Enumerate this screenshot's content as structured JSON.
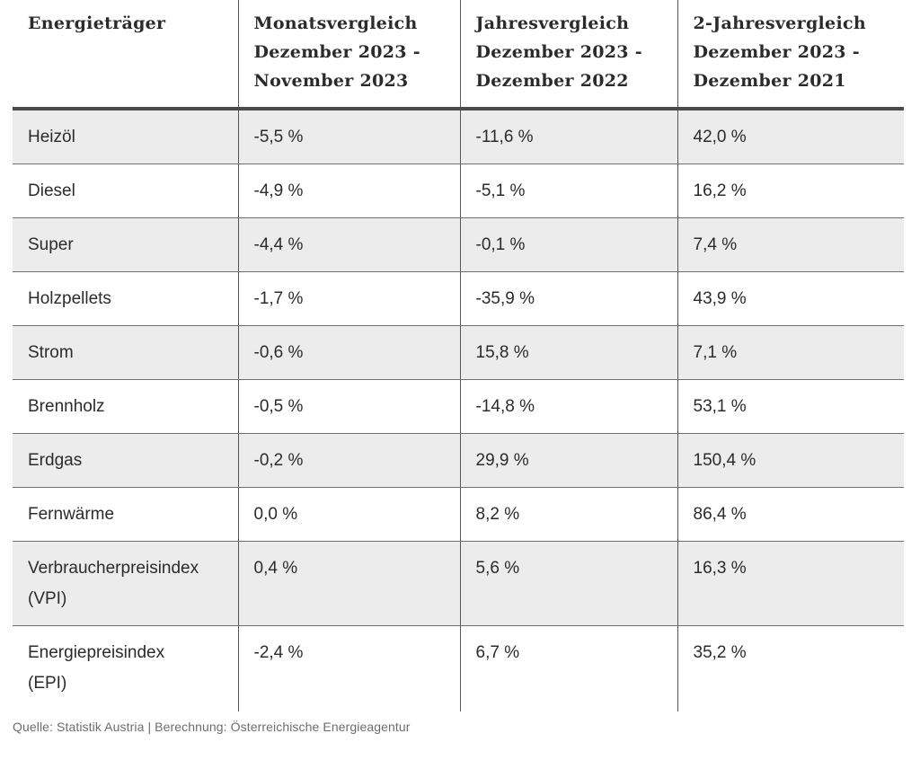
{
  "table": {
    "headers": [
      {
        "lines": [
          "Energieträger"
        ]
      },
      {
        "lines": [
          "Monatsvergleich",
          "Dezember 2023 -",
          "November 2023"
        ]
      },
      {
        "lines": [
          "Jahresvergleich",
          "Dezember 2023 -",
          "Dezember 2022"
        ]
      },
      {
        "lines": [
          "2-Jahresvergleich",
          "Dezember 2023 -",
          "Dezember 2021"
        ]
      }
    ],
    "rows": [
      {
        "name": "Heizöl",
        "month": "-5,5 %",
        "year": "-11,6 %",
        "two_year": "42,0 %"
      },
      {
        "name": "Diesel",
        "month": "-4,9 %",
        "year": "-5,1 %",
        "two_year": "16,2 %"
      },
      {
        "name": "Super",
        "month": "-4,4 %",
        "year": "-0,1 %",
        "two_year": "7,4 %"
      },
      {
        "name": "Holzpellets",
        "month": "-1,7 %",
        "year": "-35,9 %",
        "two_year": "43,9 %"
      },
      {
        "name": "Strom",
        "month": "-0,6 %",
        "year": "15,8 %",
        "two_year": "7,1 %"
      },
      {
        "name": "Brennholz",
        "month": "-0,5 %",
        "year": "-14,8 %",
        "two_year": "53,1 %"
      },
      {
        "name": "Erdgas",
        "month": "-0,2 %",
        "year": "29,9 %",
        "two_year": "150,4 %"
      },
      {
        "name": "Fernwärme",
        "month": "0,0 %",
        "year": "8,2 %",
        "two_year": "86,4 %"
      },
      {
        "name": "Verbraucherpreisindex",
        "name2": "(VPI)",
        "month": "0,4 %",
        "year": "5,6 %",
        "two_year": "16,3 %"
      },
      {
        "name": "Energiepreisindex",
        "name2": "(EPI)",
        "month": "-2,4 %",
        "year": "6,7 %",
        "two_year": "35,2 %"
      }
    ]
  },
  "source": "Quelle: Statistik Austria | Berechnung: Österreichische Energieagentur",
  "colors": {
    "row_shade": "#ececec",
    "header_rule": "#4a4a4a",
    "text": "#2b2b2b",
    "source_text": "#6d6d6d"
  }
}
